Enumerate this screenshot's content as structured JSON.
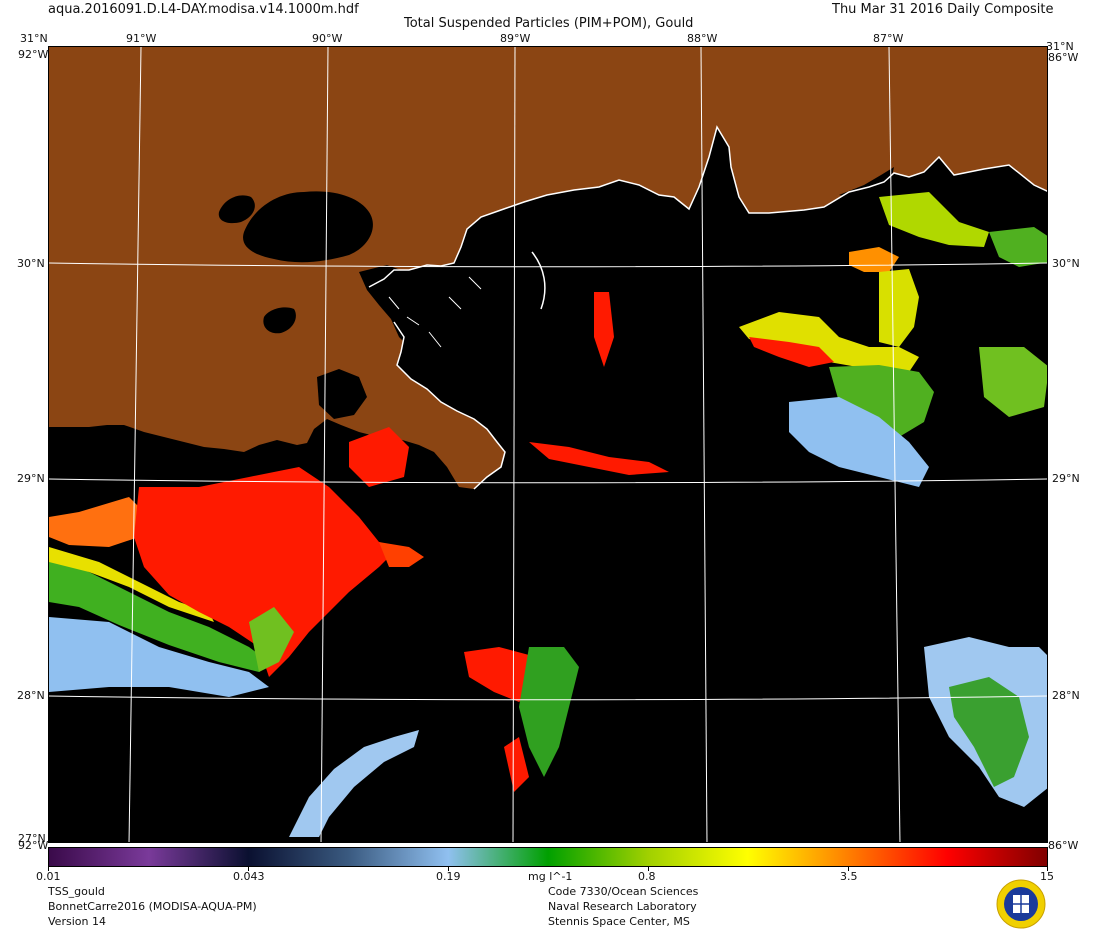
{
  "header": {
    "filename": "aqua.2016091.D.L4-DAY.modisa.v14.1000m.hdf",
    "product_title": "Total Suspended Particles (PIM+POM), Gould",
    "date_label": "Thu Mar 31 2016 Daily Composite"
  },
  "map": {
    "lon_labels": [
      "91°W",
      "90°W",
      "89°W",
      "88°W",
      "87°W"
    ],
    "lat_labels": [
      "30°N",
      "29°N",
      "28°N"
    ],
    "corner_lat_top": "31°N",
    "corner_lon_right_top": "86°W",
    "corner_lon_left_top": "92°W",
    "corner_lat_bottom": "27°N",
    "corner_lon_left_bottom": "92°W",
    "corner_lon_right_bottom": "86°W",
    "colors": {
      "land": "#8b4513",
      "no_data_water": "#000000",
      "graticule": "#ffffff",
      "coastline": "#ffffff"
    }
  },
  "colorbar": {
    "scale": "log",
    "range": [
      0.01,
      15
    ],
    "tick_labels": [
      "0.01",
      "0.043",
      "0.19",
      "0.8",
      "3.5",
      "15"
    ],
    "units": "mg l^-1",
    "stops": [
      "#3a0a4a",
      "#7a3a9a",
      "#0a1030",
      "#3a5a80",
      "#90c0f0",
      "#00a000",
      "#a0d000",
      "#ffff00",
      "#ff8000",
      "#ff0000",
      "#800000"
    ]
  },
  "footer": {
    "left": [
      "TSS_gould",
      "BonnetCarre2016 (MODISA-AQUA-PM)",
      "Version 14"
    ],
    "center": [
      "Code 7330/Ocean Sciences",
      "Naval Research Laboratory",
      "Stennis Space Center, MS"
    ],
    "logo": "nrl-seal-logo"
  }
}
